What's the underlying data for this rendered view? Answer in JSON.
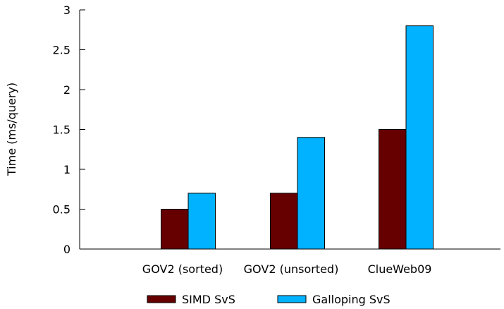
{
  "chart_data": {
    "type": "bar",
    "title": "",
    "xlabel": "",
    "ylabel": "Time (ms/query)",
    "categories": [
      "GOV2 (sorted)",
      "GOV2 (unsorted)",
      "ClueWeb09"
    ],
    "series": [
      {
        "name": "SIMD SvS",
        "color": "#660000",
        "values": [
          0.5,
          0.7,
          1.5
        ]
      },
      {
        "name": "Galloping SvS",
        "color": "#00b2ff",
        "values": [
          0.7,
          1.4,
          2.8
        ]
      }
    ],
    "ylim": [
      0,
      3
    ],
    "yticks": [
      "0",
      "0.5",
      "1",
      "1.5",
      "2",
      "2.5",
      "3"
    ],
    "grid": false,
    "legend_position": "bottom"
  }
}
